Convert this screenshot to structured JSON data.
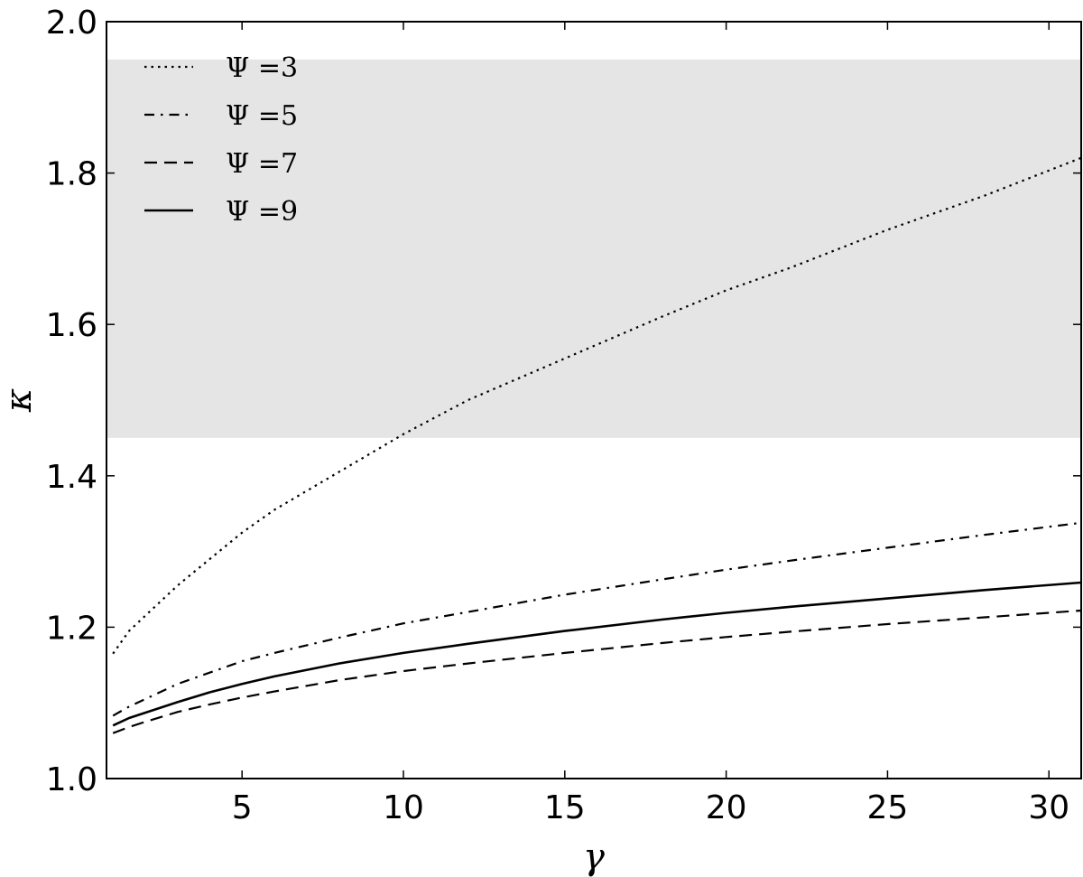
{
  "chart_data": {
    "type": "line",
    "xlabel": "γ",
    "ylabel": "κ",
    "xlim": [
      0.8,
      31
    ],
    "ylim": [
      1.0,
      2.0
    ],
    "xticks": [
      5,
      10,
      15,
      20,
      25,
      30
    ],
    "yticks": [
      1.0,
      1.2,
      1.4,
      1.6,
      1.8,
      2.0
    ],
    "xtick_labels": [
      "5",
      "10",
      "15",
      "20",
      "25",
      "30"
    ],
    "ytick_labels": [
      "1.0",
      "1.2",
      "1.4",
      "1.6",
      "1.8",
      "2.0"
    ],
    "grid": false,
    "legend_position": "top-left",
    "shaded_band": {
      "y_from": 1.45,
      "y_to": 1.95,
      "color": "#e5e5e5"
    },
    "series": [
      {
        "name": "Ψ =3",
        "style": "dotted",
        "x": [
          1,
          1.5,
          2,
          3,
          4,
          5,
          6,
          8,
          10,
          12,
          15,
          18,
          20,
          22,
          25,
          28,
          31
        ],
        "y": [
          1.165,
          1.195,
          1.215,
          1.255,
          1.29,
          1.325,
          1.355,
          1.405,
          1.455,
          1.5,
          1.555,
          1.61,
          1.645,
          1.675,
          1.725,
          1.77,
          1.82
        ]
      },
      {
        "name": "Ψ =5",
        "style": "dashdot",
        "x": [
          1,
          1.5,
          2,
          3,
          4,
          5,
          6,
          8,
          10,
          12,
          15,
          18,
          20,
          22,
          25,
          28,
          31
        ],
        "y": [
          1.083,
          1.095,
          1.105,
          1.125,
          1.14,
          1.155,
          1.166,
          1.186,
          1.205,
          1.22,
          1.243,
          1.263,
          1.276,
          1.288,
          1.305,
          1.322,
          1.338
        ]
      },
      {
        "name": "Ψ =7",
        "style": "dashed",
        "x": [
          1,
          1.5,
          2,
          3,
          4,
          5,
          6,
          8,
          10,
          12,
          15,
          18,
          20,
          22,
          25,
          28,
          31
        ],
        "y": [
          1.06,
          1.068,
          1.075,
          1.088,
          1.098,
          1.107,
          1.115,
          1.13,
          1.142,
          1.152,
          1.166,
          1.179,
          1.187,
          1.194,
          1.204,
          1.213,
          1.222
        ]
      },
      {
        "name": "Ψ =9",
        "style": "solid",
        "x": [
          1,
          1.5,
          2,
          3,
          4,
          5,
          6,
          8,
          10,
          12,
          15,
          18,
          20,
          22,
          25,
          28,
          31
        ],
        "y": [
          1.07,
          1.08,
          1.087,
          1.101,
          1.114,
          1.125,
          1.135,
          1.152,
          1.166,
          1.178,
          1.195,
          1.21,
          1.219,
          1.227,
          1.238,
          1.249,
          1.259
        ]
      }
    ]
  }
}
